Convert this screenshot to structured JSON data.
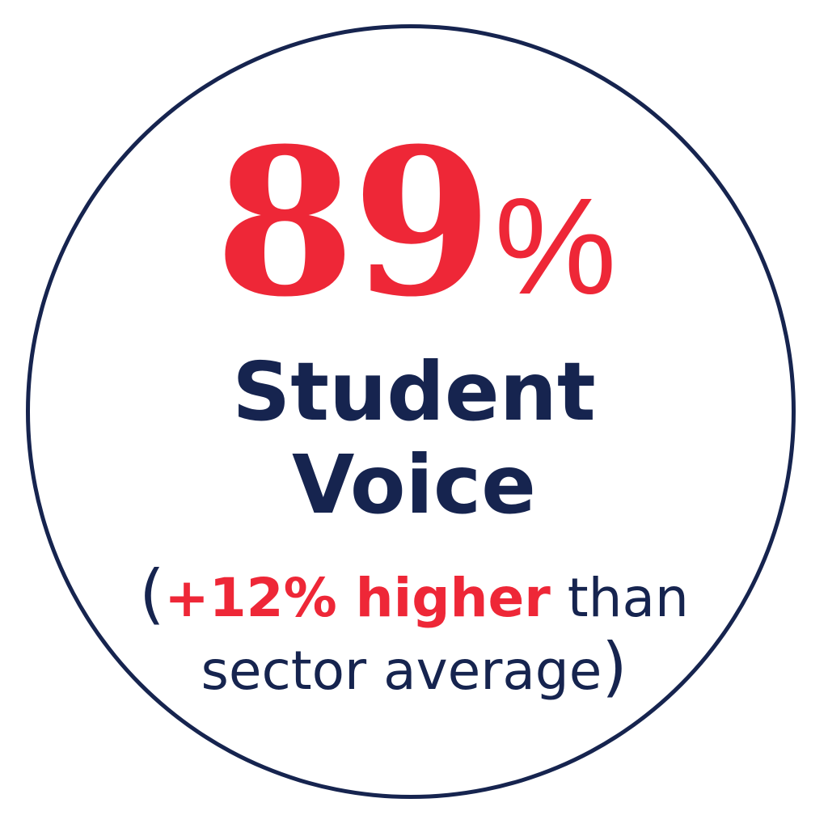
{
  "colors": {
    "accent": "#ee2737",
    "primary": "#16244f",
    "background": "#ffffff"
  },
  "stat": {
    "value": "89",
    "unit": "%"
  },
  "label": {
    "line1": "Student",
    "line2": "Voice"
  },
  "note": {
    "open_paren": "(",
    "highlight": "+12% higher",
    "rest_line1": " than",
    "line2": "sector average",
    "close_paren": ")"
  }
}
